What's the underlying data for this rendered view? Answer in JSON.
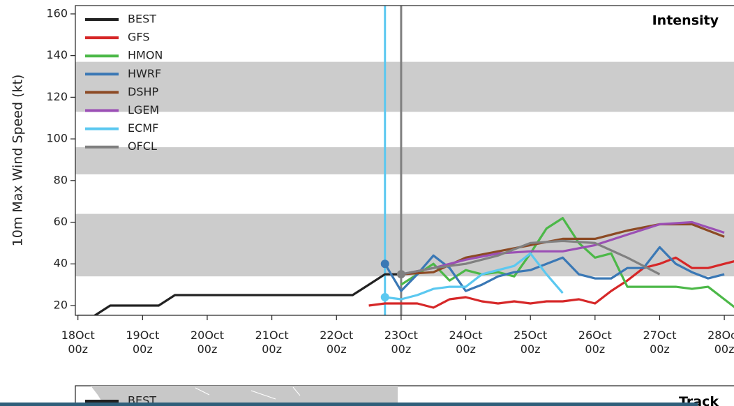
{
  "chart_data": [
    {
      "type": "line",
      "title": "Intensity",
      "y_label": "10m Max Wind Speed (kt)",
      "xlim": [
        -0.04,
        10.15
      ],
      "ylim": [
        15.3,
        164
      ],
      "xticks": [
        {
          "value": 0,
          "label": "18Oct\n00z"
        },
        {
          "value": 1,
          "label": "19Oct\n00z"
        },
        {
          "value": 2,
          "label": "20Oct\n00z"
        },
        {
          "value": 3,
          "label": "21Oct\n00z"
        },
        {
          "value": 4,
          "label": "22Oct\n00z"
        },
        {
          "value": 5,
          "label": "23Oct\n00z"
        },
        {
          "value": 6,
          "label": "24Oct\n00z"
        },
        {
          "value": 7,
          "label": "25Oct\n00z"
        },
        {
          "value": 8,
          "label": "26Oct\n00z"
        },
        {
          "value": 9,
          "label": "27Oct\n00z"
        },
        {
          "value": 10,
          "label": "28Oct\n00z"
        }
      ],
      "yticks": [
        20,
        40,
        60,
        80,
        100,
        120,
        140,
        160
      ],
      "bands": [
        [
          34,
          64
        ],
        [
          83,
          96
        ],
        [
          113,
          137
        ]
      ],
      "band_color": "#cccccc",
      "vlines": [
        {
          "x": 4.75,
          "color": "#5bc8f0"
        },
        {
          "x": 5.0,
          "color": "#808080"
        }
      ],
      "legend": "upper left",
      "series": [
        {
          "name": "BEST",
          "color": "#222222",
          "marker": false,
          "x": [
            0,
            0.25,
            0.5,
            0.75,
            1,
            1.25,
            1.5,
            1.75,
            2,
            2.25,
            2.5,
            2.75,
            3,
            3.25,
            3.5,
            3.75,
            4,
            4.25,
            4.5,
            4.75,
            5.0
          ],
          "values": [
            15,
            15,
            20,
            20,
            20,
            20,
            25,
            25,
            25,
            25,
            25,
            25,
            25,
            25,
            25,
            25,
            25,
            25,
            30,
            35,
            35
          ]
        },
        {
          "name": "GFS",
          "color": "#d62728",
          "marker": false,
          "x": [
            4.5,
            4.75,
            5.0,
            5.25,
            5.5,
            5.75,
            6.0,
            6.25,
            6.5,
            6.75,
            7.0,
            7.25,
            7.5,
            7.75,
            8.0,
            8.25,
            8.5,
            8.75,
            9.0,
            9.25,
            9.5,
            9.75,
            10.0,
            10.25
          ],
          "values": [
            20,
            21,
            21,
            21,
            19,
            23,
            24,
            22,
            21,
            22,
            21,
            22,
            22,
            23,
            21,
            27,
            32,
            38,
            40,
            43,
            38,
            38,
            40,
            42
          ]
        },
        {
          "name": "HMON",
          "color": "#4cb848",
          "marker": false,
          "x": [
            5.0,
            5.25,
            5.5,
            5.75,
            6.0,
            6.25,
            6.5,
            6.75,
            7.0,
            7.25,
            7.5,
            7.75,
            8.0,
            8.25,
            8.5,
            8.75,
            9.0,
            9.25,
            9.5,
            9.75,
            10.0,
            10.25
          ],
          "values": [
            30,
            35,
            40,
            32,
            37,
            35,
            36,
            34,
            45,
            57,
            62,
            50,
            43,
            45,
            29,
            29,
            29,
            29,
            28,
            29,
            23,
            17
          ]
        },
        {
          "name": "HWRF",
          "color": "#3a78b5",
          "marker": true,
          "x": [
            4.75,
            5.0,
            5.25,
            5.5,
            5.75,
            6.0,
            6.25,
            6.5,
            6.75,
            7.0,
            7.25,
            7.5,
            7.75,
            8.0,
            8.25,
            8.5,
            8.75,
            9.0,
            9.25,
            9.5,
            9.75,
            10.0
          ],
          "values": [
            40,
            27,
            35,
            44,
            38,
            27,
            30,
            34,
            36,
            37,
            40,
            43,
            35,
            33,
            33,
            38,
            38,
            48,
            40,
            36,
            33,
            35
          ]
        },
        {
          "name": "DSHP",
          "color": "#8c4a24",
          "marker": false,
          "x": [
            5.0,
            5.5,
            6.0,
            6.5,
            7.0,
            7.5,
            8.0,
            8.5,
            9.0,
            9.5,
            10.0
          ],
          "values": [
            35,
            36,
            43,
            46,
            49,
            52,
            52,
            56,
            59,
            59,
            53
          ]
        },
        {
          "name": "LGEM",
          "color": "#9b4fb5",
          "marker": false,
          "x": [
            5.0,
            5.5,
            6.0,
            6.5,
            7.0,
            7.5,
            8.0,
            8.5,
            9.0,
            9.5,
            10.0
          ],
          "values": [
            35,
            38,
            42,
            45,
            46,
            46,
            49,
            54,
            59,
            60,
            55
          ]
        },
        {
          "name": "ECMF",
          "color": "#5bc8f0",
          "marker": true,
          "x": [
            4.75,
            5.0,
            5.25,
            5.5,
            5.75,
            6.0,
            6.25,
            6.5,
            6.75,
            7.0,
            7.25,
            7.5
          ],
          "values": [
            24,
            23,
            25,
            28,
            29,
            29,
            35,
            37,
            39,
            45,
            35,
            26
          ]
        },
        {
          "name": "OFCL",
          "color": "#808080",
          "marker": true,
          "x": [
            5.0,
            5.5,
            6.0,
            6.5,
            7.0,
            7.5,
            8.0,
            8.5,
            9.0
          ],
          "values": [
            35,
            38,
            40,
            44,
            50,
            51,
            50,
            43,
            35
          ]
        }
      ]
    },
    {
      "type": "map",
      "title": "Track",
      "legend": "upper left",
      "series": [
        {
          "name": "BEST",
          "color": "#222222"
        }
      ]
    }
  ]
}
